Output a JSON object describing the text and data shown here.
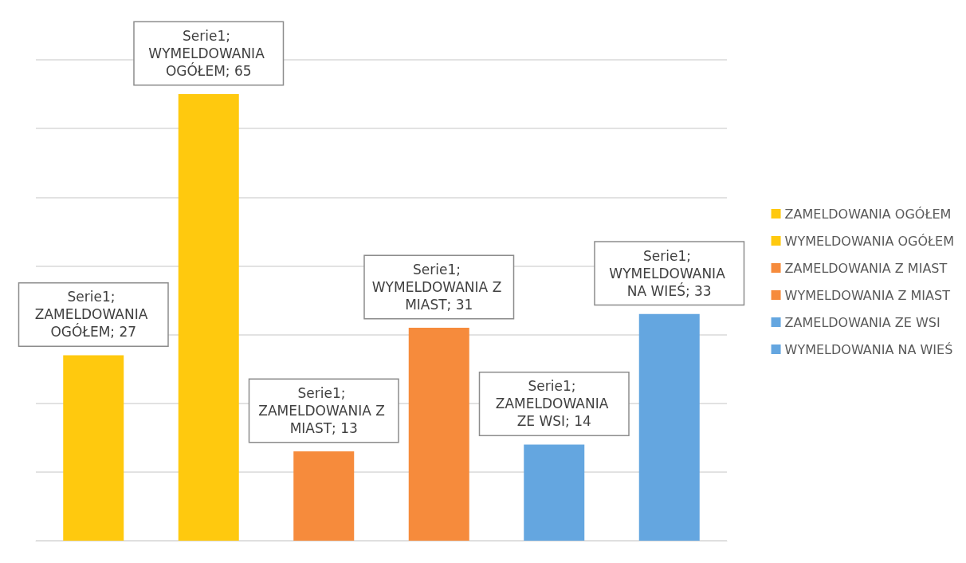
{
  "chart_data": {
    "type": "bar",
    "categories": [
      null,
      null,
      null,
      null,
      null,
      null
    ],
    "stacked": true,
    "series": [
      {
        "name": "ZAMELDOWANIA OGÓŁEM",
        "color": "#ffc90e",
        "values": [
          27,
          null,
          null,
          null,
          null,
          null
        ],
        "value_labels": [
          "Serie1; ZAMELDOWANIA OGÓŁEM; 27",
          null,
          null,
          null,
          null,
          null
        ]
      },
      {
        "name": "WYMELDOWANIA OGÓŁEM",
        "color": "#ffc90e",
        "values": [
          null,
          65,
          null,
          null,
          null,
          null
        ],
        "value_labels": [
          null,
          "Serie1; WYMELDOWANIA OGÓŁEM; 65",
          null,
          null,
          null,
          null
        ]
      },
      {
        "name": "ZAMELDOWANIA Z MIAST",
        "color": "#f68b3c",
        "values": [
          null,
          null,
          13,
          null,
          null,
          null
        ],
        "value_labels": [
          null,
          null,
          "Serie1; ZAMELDOWANIA Z MIAST; 13",
          null,
          null,
          null
        ]
      },
      {
        "name": "WYMELDOWANIA Z MIAST",
        "color": "#f68b3c",
        "values": [
          null,
          null,
          null,
          31,
          null,
          null
        ],
        "value_labels": [
          null,
          null,
          null,
          "Serie1; WYMELDOWANIA Z MIAST; 31",
          null,
          null
        ]
      },
      {
        "name": "ZAMELDOWANIA ZE WSI",
        "color": "#64a6e0",
        "values": [
          null,
          null,
          null,
          null,
          14,
          null
        ],
        "value_labels": [
          null,
          null,
          null,
          null,
          "Serie1; ZAMELDOWANIA ZE WSI; 14",
          null
        ]
      },
      {
        "name": "WYMELDOWANIA NA WIEŚ",
        "color": "#64a6e0",
        "values": [
          null,
          null,
          null,
          null,
          null,
          33
        ],
        "value_labels": [
          null,
          null,
          null,
          null,
          null,
          "Serie1; WYMELDOWANIA NA WIEŚ; 33"
        ]
      }
    ],
    "ylim": [
      0,
      70
    ],
    "yticks": [
      {
        "value": 0,
        "label": null
      },
      {
        "value": 10,
        "label": null
      },
      {
        "value": 20,
        "label": null
      },
      {
        "value": 30,
        "label": null
      },
      {
        "value": 40,
        "label": null
      },
      {
        "value": 50,
        "label": null
      },
      {
        "value": 60,
        "label": null
      },
      {
        "value": 70,
        "label": null
      }
    ],
    "grid": "y",
    "legend": "right"
  }
}
